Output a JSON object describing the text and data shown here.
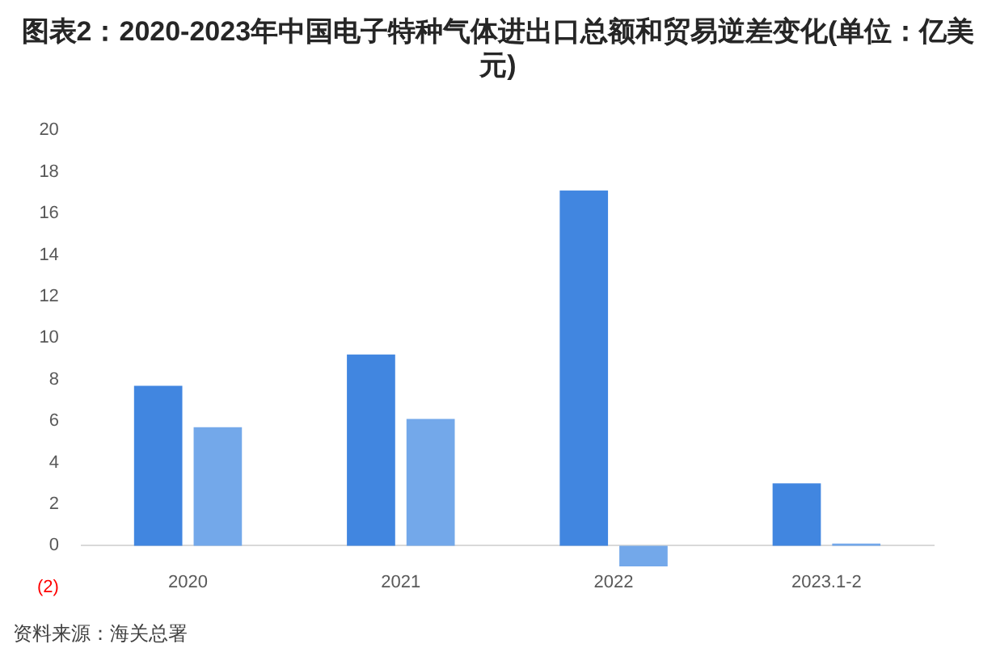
{
  "chart_data": {
    "type": "bar",
    "title": "图表2：2020-2023年中国电子特种气体进出口总额和贸易逆差变化(单位：亿美元)",
    "categories": [
      "2020",
      "2021",
      "2022",
      "2023.1-2"
    ],
    "series": [
      {
        "color": "#4186e0",
        "values": [
          7.7,
          9.2,
          17.1,
          3.0
        ]
      },
      {
        "color": "#73a8ea",
        "values": [
          5.7,
          6.1,
          -1.0,
          0.1
        ]
      }
    ],
    "ylim": [
      -2,
      20
    ],
    "yticks": [
      {
        "value": -2,
        "label": "(2)"
      },
      0,
      2,
      4,
      6,
      8,
      10,
      12,
      14,
      16,
      18,
      20
    ],
    "grid": false,
    "annotations": [
      "资料来源：海关总署"
    ]
  }
}
